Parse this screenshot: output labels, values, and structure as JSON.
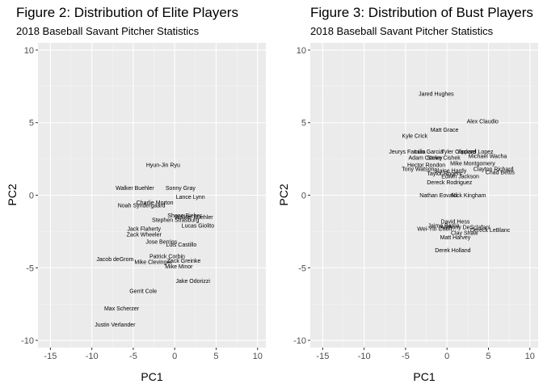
{
  "chart_data": [
    {
      "type": "scatter",
      "title": "Figure 2: Distribution of Elite Players",
      "subtitle": "2018 Baseball Savant Pitcher Statistics",
      "xlabel": "PC1",
      "ylabel": "PC2",
      "xlim": [
        -16.5,
        11.0
      ],
      "ylim": [
        -10.5,
        10.5
      ],
      "xticks": [
        "-15",
        "-10",
        "-5",
        "0",
        "5",
        "10"
      ],
      "xtick_values": [
        -15,
        -10,
        -5,
        0,
        5,
        10
      ],
      "yticks": [
        "-10",
        "-5",
        "0",
        "5",
        "10"
      ],
      "ytick_values": [
        -10,
        -5,
        0,
        5,
        10
      ],
      "grid": true,
      "points": [
        {
          "label": "Hyun-Jin Ryu",
          "x": -1.4,
          "y": 2.1
        },
        {
          "label": "Walker Buehler",
          "x": -4.8,
          "y": 0.5
        },
        {
          "label": "Sonny Gray",
          "x": 0.7,
          "y": 0.5
        },
        {
          "label": "Lance Lynn",
          "x": 1.9,
          "y": -0.1
        },
        {
          "label": "Charlie Morton",
          "x": -2.4,
          "y": -0.5
        },
        {
          "label": "Noah Syndergaard",
          "x": -4.0,
          "y": -0.7
        },
        {
          "label": "Shane Bieber",
          "x": 1.2,
          "y": -1.4
        },
        {
          "label": "Walker Buehler",
          "x": 2.3,
          "y": -1.5
        },
        {
          "label": "Stephen Strasburg",
          "x": 0.1,
          "y": -1.7
        },
        {
          "label": "Lucas Giolito",
          "x": 2.8,
          "y": -2.1
        },
        {
          "label": "Jack Flaherty",
          "x": -3.7,
          "y": -2.3
        },
        {
          "label": "Zack Wheeler",
          "x": -3.7,
          "y": -2.7
        },
        {
          "label": "Jose Berrios",
          "x": -1.6,
          "y": -3.2
        },
        {
          "label": "Luis Castillo",
          "x": 0.8,
          "y": -3.4
        },
        {
          "label": "Patrick Corbin",
          "x": -0.9,
          "y": -4.2
        },
        {
          "label": "Jacob deGrom",
          "x": -7.2,
          "y": -4.4
        },
        {
          "label": "Zack Greinke",
          "x": 1.1,
          "y": -4.5
        },
        {
          "label": "Mike Clevinger",
          "x": -2.6,
          "y": -4.6
        },
        {
          "label": "Mike Minor",
          "x": 0.5,
          "y": -4.9
        },
        {
          "label": "Jake Odorizzi",
          "x": 2.2,
          "y": -5.9
        },
        {
          "label": "Gerrit Cole",
          "x": -3.8,
          "y": -6.6
        },
        {
          "label": "Max Scherzer",
          "x": -6.4,
          "y": -7.8
        },
        {
          "label": "Justin Verlander",
          "x": -7.2,
          "y": -8.9
        }
      ]
    },
    {
      "type": "scatter",
      "title": "Figure 3: Distribution of Bust Players",
      "subtitle": "2018 Baseball Savant Pitcher Statistics",
      "xlabel": "PC1",
      "ylabel": "PC2",
      "xlim": [
        -16.5,
        11.0
      ],
      "ylim": [
        -10.5,
        10.5
      ],
      "xticks": [
        "-15",
        "-10",
        "-5",
        "0",
        "5",
        "10"
      ],
      "xtick_values": [
        -15,
        -10,
        -5,
        0,
        5,
        10
      ],
      "yticks": [
        "-10",
        "-5",
        "0",
        "5",
        "10"
      ],
      "ytick_values": [
        -10,
        -5,
        0,
        5,
        10
      ],
      "grid": true,
      "points": [
        {
          "label": "Jared Hughes",
          "x": -1.3,
          "y": 7.0
        },
        {
          "label": "Alex Claudio",
          "x": 4.3,
          "y": 5.1
        },
        {
          "label": "Matt Grace",
          "x": -0.3,
          "y": 4.5
        },
        {
          "label": "Kyle Crick",
          "x": -3.9,
          "y": 4.1
        },
        {
          "label": "Jeurys Familia",
          "x": -4.8,
          "y": 3.0
        },
        {
          "label": "Luis Garcia",
          "x": -2.2,
          "y": 3.0
        },
        {
          "label": "Tyler Clippard",
          "x": 1.4,
          "y": 3.0
        },
        {
          "label": "Yacksel Lopez",
          "x": 3.4,
          "y": 3.0
        },
        {
          "label": "Adam Conley",
          "x": -2.6,
          "y": 2.6
        },
        {
          "label": "Steve Cishek",
          "x": -0.4,
          "y": 2.6
        },
        {
          "label": "Michael Wacha",
          "x": 4.9,
          "y": 2.7
        },
        {
          "label": "Mike Montgomery",
          "x": 3.1,
          "y": 2.2
        },
        {
          "label": "Hector Rondon",
          "x": -2.5,
          "y": 2.1
        },
        {
          "label": "Tony Watson",
          "x": -3.5,
          "y": 1.8
        },
        {
          "label": "Blaine Hardy",
          "x": 0.4,
          "y": 1.7
        },
        {
          "label": "Clayton Richard",
          "x": 5.6,
          "y": 1.8
        },
        {
          "label": "Taylor Rogers",
          "x": -0.3,
          "y": 1.5
        },
        {
          "label": "Chad Bettis",
          "x": 6.4,
          "y": 1.6
        },
        {
          "label": "Edwin Jackson",
          "x": 1.6,
          "y": 1.3
        },
        {
          "label": "Dereck Rodriguez",
          "x": 0.3,
          "y": 0.9
        },
        {
          "label": "Nathan Eovaldi",
          "x": -1.0,
          "y": 0.0
        },
        {
          "label": "Nick Kingham",
          "x": 2.6,
          "y": 0.0
        },
        {
          "label": "David Hess",
          "x": 1.0,
          "y": -1.8
        },
        {
          "label": "Jaime Barria",
          "x": -0.4,
          "y": -2.1
        },
        {
          "label": "Wei-Yin Chen",
          "x": -1.5,
          "y": -2.3
        },
        {
          "label": "Anthony DeSclafani",
          "x": 2.2,
          "y": -2.2
        },
        {
          "label": "Dereck LeBlanc",
          "x": 5.2,
          "y": -2.4
        },
        {
          "label": "Clay Shaw",
          "x": 2.1,
          "y": -2.6
        },
        {
          "label": "Matt Harvey",
          "x": 1.0,
          "y": -2.9
        },
        {
          "label": "Derek Holland",
          "x": 0.7,
          "y": -3.8
        }
      ]
    }
  ]
}
